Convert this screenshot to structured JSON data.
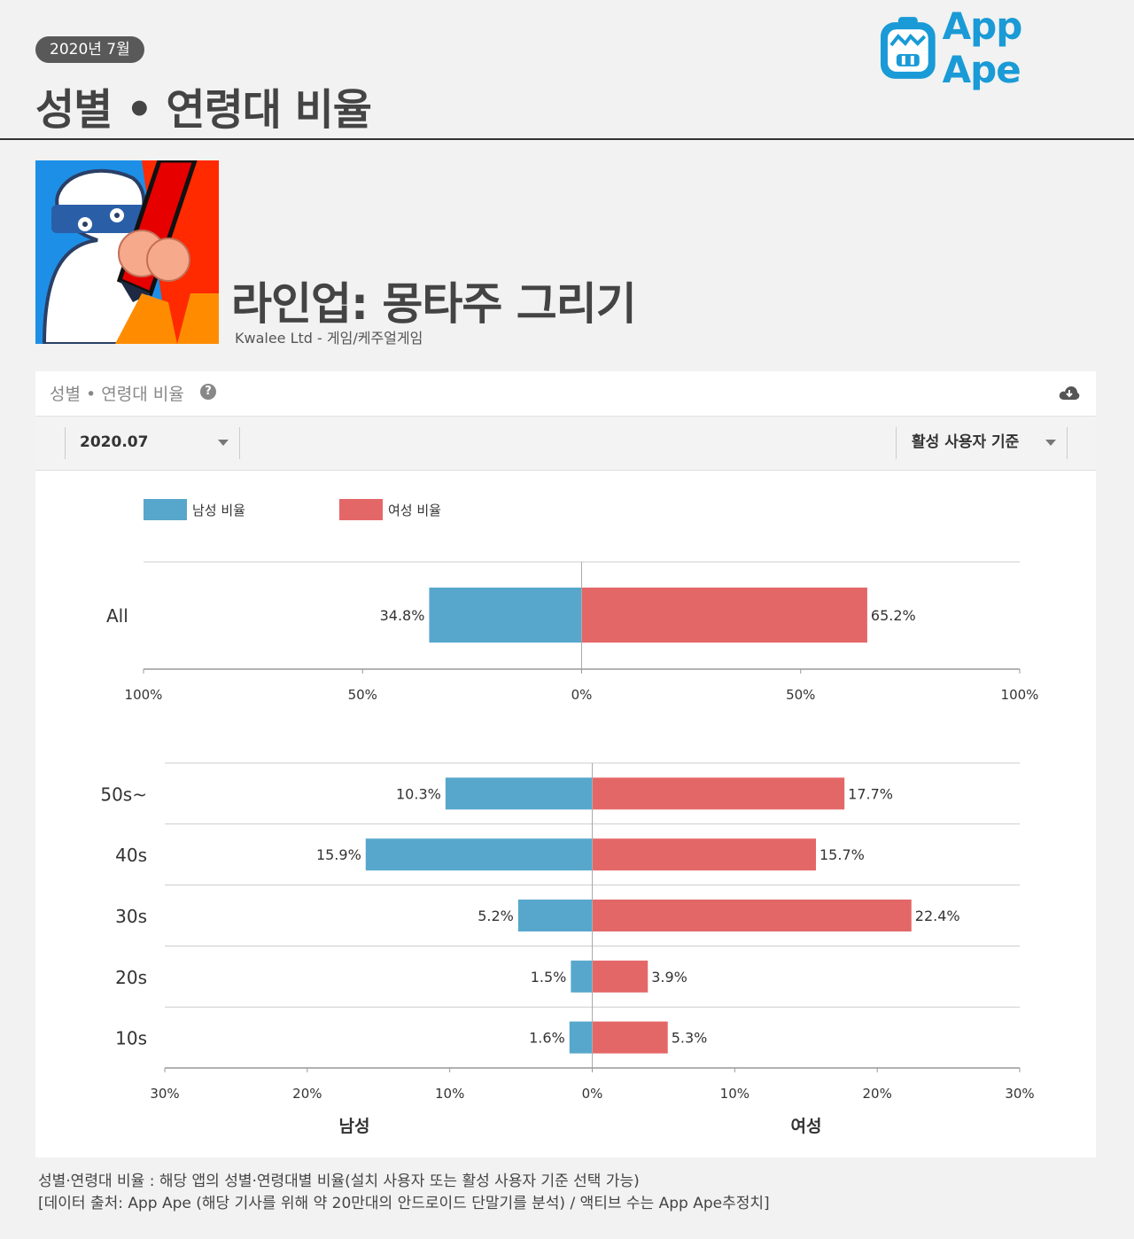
{
  "header": {
    "date": "2020년 7월",
    "title": "성별 • 연령대 비율",
    "brand": "App Ape"
  },
  "app": {
    "name": "라인업: 몽타주 그리기",
    "meta": "Kwalee Ltd - 게임/케주얼게임"
  },
  "panel": {
    "title": "성별 • 연령대 비율",
    "help": "?",
    "month_select": "2020.07",
    "basis_select": "활성 사용자 기준"
  },
  "colors": {
    "male": "#57a7cc",
    "female": "#e46768",
    "brand": "#1a9ad6"
  },
  "chart_data": [
    {
      "type": "bar",
      "orientation": "horizontal-diverging",
      "title": "All",
      "categories": [
        "All"
      ],
      "series": [
        {
          "name": "남성 비율",
          "values": [
            34.8
          ]
        },
        {
          "name": "여성 비율",
          "values": [
            65.2
          ]
        }
      ],
      "xlim": [
        -100,
        100
      ],
      "ticks": [
        "100%",
        "50%",
        "0%",
        "50%",
        "100%"
      ],
      "legend": [
        "남성 비율",
        "여성 비율"
      ],
      "legend_position": "top-left"
    },
    {
      "type": "bar",
      "orientation": "horizontal-diverging",
      "categories": [
        "50s~",
        "40s",
        "30s",
        "20s",
        "10s"
      ],
      "series": [
        {
          "name": "남성",
          "values": [
            10.3,
            15.9,
            5.2,
            1.5,
            1.6
          ]
        },
        {
          "name": "여성",
          "values": [
            17.7,
            15.7,
            22.4,
            3.9,
            5.3
          ]
        }
      ],
      "xlim": [
        -30,
        30
      ],
      "ticks": [
        "30%",
        "20%",
        "10%",
        "0%",
        "10%",
        "20%",
        "30%"
      ],
      "xlabel_left": "남성",
      "xlabel_right": "여성"
    }
  ],
  "footnote": {
    "line1": "성별·연령대 비율 : 해당 앱의 성별·연령대별 비율(설치 사용자 또는 활성 사용자 기준 선택 가능)",
    "line2": "[데이터 출처: App Ape (해당 기사를 위해 약 20만대의 안드로이드 단말기를 분석) / 액티브 수는 App Ape추정치]"
  }
}
